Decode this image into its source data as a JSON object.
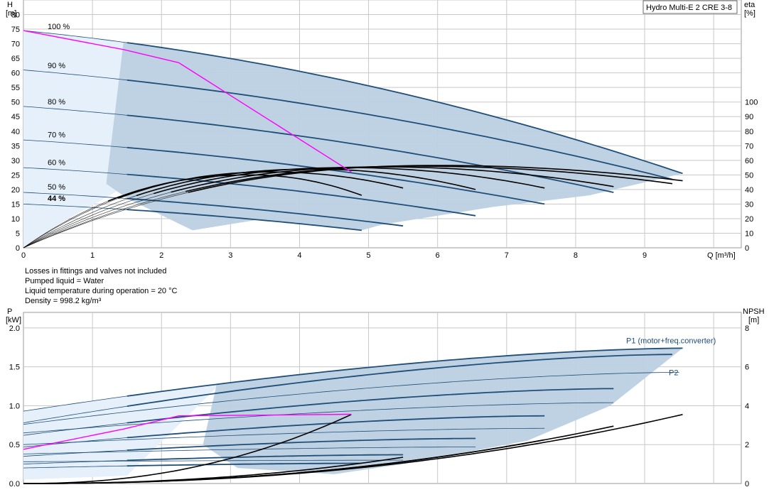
{
  "chart_data": [
    {
      "type": "line",
      "title_box": "Hydro Multi-E 2 CRE 3-8",
      "y_label": [
        "H",
        "[m]"
      ],
      "y2_label": [
        "eta",
        "[%]"
      ],
      "x_label": "Q [m³/h]",
      "x_ticks": [
        "0",
        "1",
        "2",
        "3",
        "4",
        "5",
        "6",
        "7",
        "8",
        "9"
      ],
      "y_ticks": [
        "0",
        "5",
        "10",
        "15",
        "20",
        "25",
        "30",
        "35",
        "40",
        "45",
        "50",
        "55",
        "60",
        "65",
        "70",
        "75",
        "80"
      ],
      "y2_ticks": [
        "0",
        "10",
        "20",
        "30",
        "40",
        "50",
        "60",
        "70",
        "80",
        "90",
        "100"
      ],
      "xlim": [
        0,
        10.4
      ],
      "ylim": [
        0,
        85
      ],
      "y2lim": [
        0,
        100
      ],
      "speed_labels": [
        "100 %",
        "90 %",
        "80 %",
        "70 %",
        "60 %",
        "50 %",
        "44 %"
      ],
      "speed_curves": [
        {
          "name": "100 %",
          "H0": 74.5,
          "Qmax": 9.55,
          "Hmax": 25.5,
          "k0": 0.45
        },
        {
          "name": "90 %",
          "H0": 61.0,
          "Qmax": 9.4,
          "Hmax": 23.5,
          "k0": 0.5
        },
        {
          "name": "80 %",
          "H0": 48.5,
          "Qmax": 8.55,
          "Hmax": 19.0,
          "k0": 0.5
        },
        {
          "name": "70 %",
          "H0": 37.0,
          "Qmax": 7.55,
          "Hmax": 15.0,
          "k0": 0.5
        },
        {
          "name": "60 %",
          "H0": 27.5,
          "Qmax": 6.55,
          "Hmax": 11.0,
          "k0": 0.5
        },
        {
          "name": "50 %",
          "H0": 19.0,
          "Qmax": 5.5,
          "Hmax": 7.5,
          "k0": 0.55
        },
        {
          "name": "44 %",
          "H0": 15.0,
          "Qmax": 4.9,
          "Hmax": 6.0,
          "k0": 0.55
        }
      ],
      "eta_curves": [
        {
          "peak": 56.5,
          "qpeak": 6.0,
          "qend": 9.55,
          "eend": 46
        },
        {
          "peak": 56.0,
          "qpeak": 5.7,
          "qend": 9.4,
          "eend": 44
        },
        {
          "peak": 55.5,
          "qpeak": 5.2,
          "qend": 8.55,
          "eend": 42
        },
        {
          "peak": 55.0,
          "qpeak": 4.7,
          "qend": 7.55,
          "eend": 41
        },
        {
          "peak": 54.0,
          "qpeak": 4.2,
          "qend": 6.55,
          "eend": 40
        },
        {
          "peak": 52.0,
          "qpeak": 3.6,
          "qend": 5.5,
          "eend": 41
        },
        {
          "peak": 50.0,
          "qpeak": 3.3,
          "qend": 4.9,
          "eend": 36
        }
      ],
      "system_curve": [
        [
          0,
          74.5
        ],
        [
          1.45,
          68.0
        ],
        [
          2.25,
          63.5
        ],
        [
          4.75,
          26.0
        ]
      ],
      "colors": {
        "curve": "#1f4e79",
        "area": "#bcd0e1",
        "area_light": "#e6f0fa",
        "system": "#ff00ff",
        "eta": "#000000",
        "grid": "#c8c8c8"
      }
    },
    {
      "type": "line",
      "y_label": [
        "P",
        "[kW]"
      ],
      "y2_label": [
        "NPSH",
        "[m]"
      ],
      "y_ticks": [
        "0.0",
        "0.5",
        "1.0",
        "1.5",
        "2.0"
      ],
      "y2_ticks": [
        "0",
        "2",
        "4",
        "6",
        "8"
      ],
      "ylim": [
        0,
        2.2
      ],
      "y2lim": [
        0,
        8.8
      ],
      "series_labels": [
        "P1 (motor+freq.converter)",
        "P2"
      ],
      "p1_curves": [
        {
          "p0": 0.93,
          "qmax": 9.55,
          "pmax": 1.74
        },
        {
          "p0": 0.78,
          "qmax": 9.4,
          "pmax": 1.66
        },
        {
          "p0": 0.62,
          "qmax": 8.55,
          "pmax": 1.22
        },
        {
          "p0": 0.47,
          "qmax": 7.55,
          "pmax": 0.87
        },
        {
          "p0": 0.35,
          "qmax": 6.55,
          "pmax": 0.58
        },
        {
          "p0": 0.25,
          "qmax": 5.5,
          "pmax": 0.37
        },
        {
          "p0": 0.2,
          "qmax": 4.9,
          "pmax": 0.26
        }
      ],
      "p2_curves": [
        {
          "p0": 0.76,
          "qmax": 9.5,
          "pmax": 1.43
        },
        {
          "p0": 0.65,
          "qmax": 8.55,
          "pmax": 1.04
        },
        {
          "p0": 0.5,
          "qmax": 7.55,
          "pmax": 0.71
        },
        {
          "p0": 0.38,
          "qmax": 6.55,
          "pmax": 0.47
        },
        {
          "p0": 0.28,
          "qmax": 5.5,
          "pmax": 0.3
        }
      ],
      "npsh_curves": [
        {
          "qend": 9.55,
          "nend": 3.55
        },
        {
          "qend": 8.55,
          "nend": 2.95
        },
        {
          "qend": 7.55,
          "nend": 2.25
        },
        {
          "qend": 5.5,
          "nend": 1.35
        },
        {
          "qend": 4.75,
          "nend": 3.55
        }
      ],
      "system_p": [
        [
          0,
          0.44
        ],
        [
          1.45,
          0.7
        ],
        [
          2.25,
          0.87
        ],
        [
          4.75,
          0.89
        ]
      ]
    }
  ],
  "notes": [
    "Losses in fittings and valves not included",
    "Pumped liquid = Water",
    "Liquid temperature during operation = 20 °C",
    "Density = 998.2 kg/m³"
  ]
}
